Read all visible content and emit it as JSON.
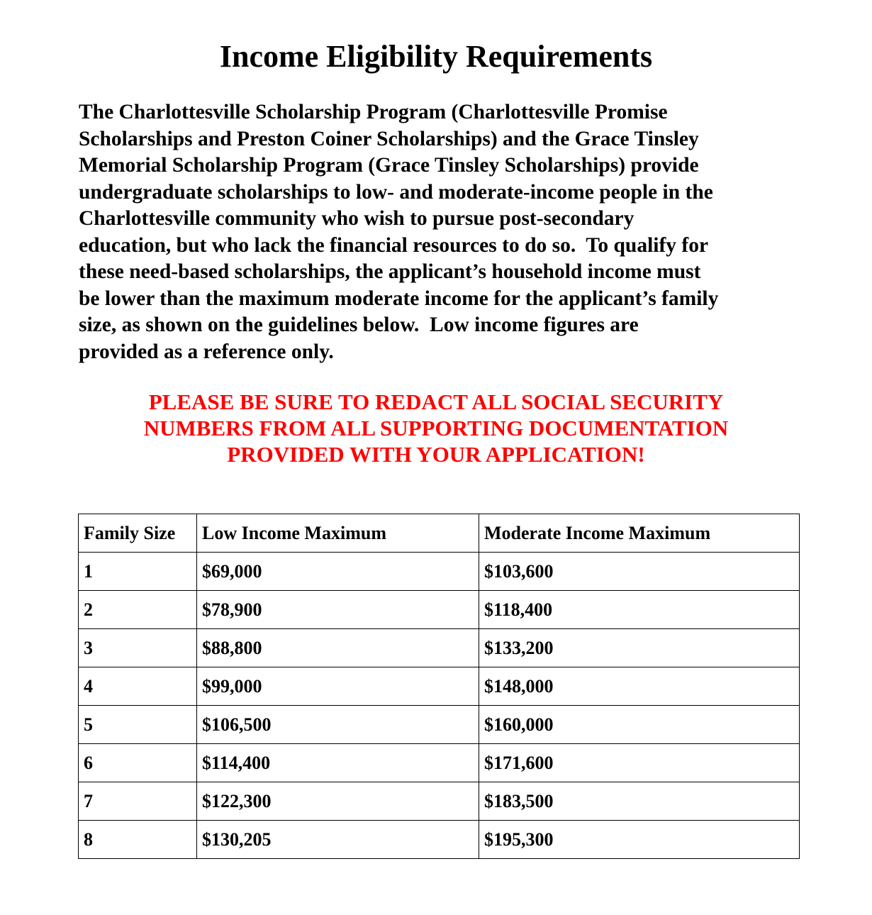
{
  "title": "Income Eligibility Requirements",
  "intro_lines": [
    "The Charlottesville Scholarship Program (Charlottesville Promise",
    "Scholarships and Preston Coiner Scholarships) and the Grace Tinsley",
    "Memorial Scholarship Program (Grace Tinsley Scholarships) provide",
    "undergraduate scholarships to low- and moderate-income people in the",
    "Charlottesville community who wish to pursue post-secondary",
    "education, but who lack the financial resources to do so.  To qualify for",
    "these need-based scholarships, the applicant’s household income must",
    "be lower than the maximum moderate income for the applicant’s family",
    "size, as shown on the guidelines below.  Low income figures are",
    "provided as a reference only."
  ],
  "warning_lines": [
    "PLEASE BE SURE TO REDACT ALL SOCIAL SECURITY",
    "NUMBERS FROM ALL SUPPORTING DOCUMENTATION",
    "PROVIDED WITH YOUR APPLICATION!"
  ],
  "warning_color": "#ff0000",
  "table": {
    "headers": [
      "Family Size",
      "Low Income Maximum",
      "Moderate Income Maximum"
    ],
    "rows": [
      [
        "1",
        "$69,000",
        "$103,600"
      ],
      [
        "2",
        "$78,900",
        "$118,400"
      ],
      [
        "3",
        "$88,800",
        "$133,200"
      ],
      [
        "4",
        "$99,000",
        "$148,000"
      ],
      [
        "5",
        "$106,500",
        "$160,000"
      ],
      [
        "6",
        "$114,400",
        "$171,600"
      ],
      [
        "7",
        "$122,300",
        "$183,500"
      ],
      [
        "8",
        "$130,205",
        "$195,300"
      ]
    ]
  }
}
